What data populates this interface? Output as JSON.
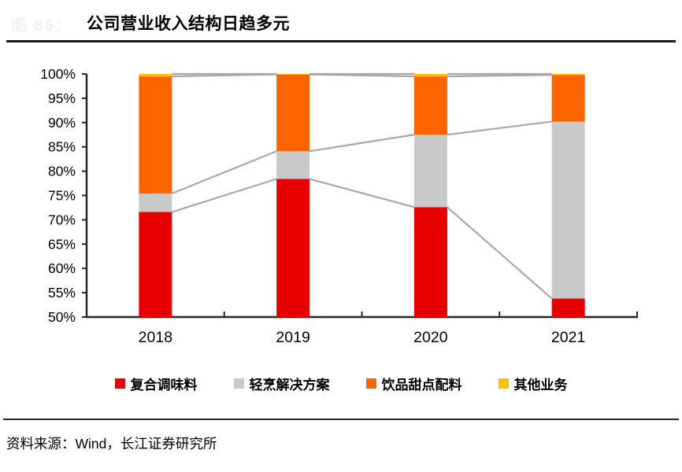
{
  "header": {
    "figure_label": "图 86：",
    "title": "公司营业收入结构日趋多元"
  },
  "footer": {
    "source_text": "资料来源：Wind，长江证券研究所"
  },
  "chart_data": {
    "type": "bar",
    "subtype": "percent-stacked-column-with-series-lines",
    "title": "公司营业收入结构日趋多元",
    "categories": [
      "2018",
      "2019",
      "2020",
      "2021"
    ],
    "series": [
      {
        "name": "复合调味料",
        "color": "#e60000",
        "values": [
          71.6,
          78.4,
          72.6,
          53.8
        ]
      },
      {
        "name": "轻烹解决方案",
        "color": "#c9c9c9",
        "values": [
          3.8,
          5.7,
          14.9,
          36.4
        ]
      },
      {
        "name": "饮品甜点配料",
        "color": "#fc6400",
        "values": [
          24.1,
          15.8,
          12.0,
          9.6
        ]
      },
      {
        "name": "其他业务",
        "color": "#ffc000",
        "values": [
          0.5,
          0.1,
          0.5,
          0.2
        ]
      }
    ],
    "cumulative_tops": {
      "2018": [
        71.6,
        75.4,
        99.5,
        100
      ],
      "2019": [
        78.4,
        84.1,
        99.9,
        100
      ],
      "2020": [
        72.6,
        87.5,
        99.5,
        100
      ],
      "2021": [
        53.8,
        90.2,
        99.8,
        100
      ]
    },
    "ylabel": "",
    "xlabel": "",
    "ylim": [
      50,
      100
    ],
    "y_tick_step": 5,
    "y_tick_labels": [
      "100%",
      "95%",
      "90%",
      "85%",
      "80%",
      "75%",
      "70%",
      "65%",
      "60%",
      "55%",
      "50%"
    ],
    "grid": false,
    "legend_position": "bottom",
    "connector_line_color": "#a8a8a8",
    "axis_color": "#262626"
  }
}
